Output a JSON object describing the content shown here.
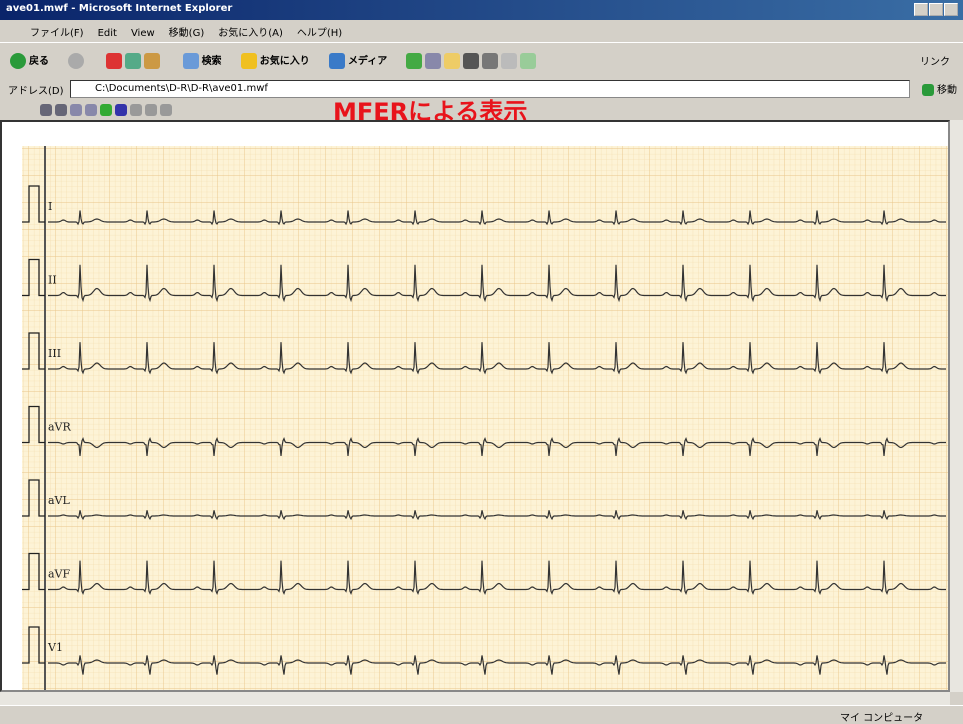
{
  "window": {
    "title": "ave01.mwf - Microsoft Internet Explorer"
  },
  "menu": [
    "ファイル(F)",
    "Edit",
    "View",
    "移動(G)",
    "お気に入り(A)",
    "ヘルプ(H)"
  ],
  "toolbar": {
    "back": "戻る",
    "search": "検索",
    "favorites": "お気に入り",
    "media": "メディア",
    "links": "リンク"
  },
  "address": {
    "label": "アドレス(D)",
    "value": "C:\\Documents\\D-R\\D-R\\ave01.mwf",
    "go": "移動"
  },
  "overlay": "MFERによる表示",
  "leads": [
    "I",
    "II",
    "III",
    "aVR",
    "aVL",
    "aVF",
    "V1"
  ],
  "status": "マイ コンピュータ"
}
